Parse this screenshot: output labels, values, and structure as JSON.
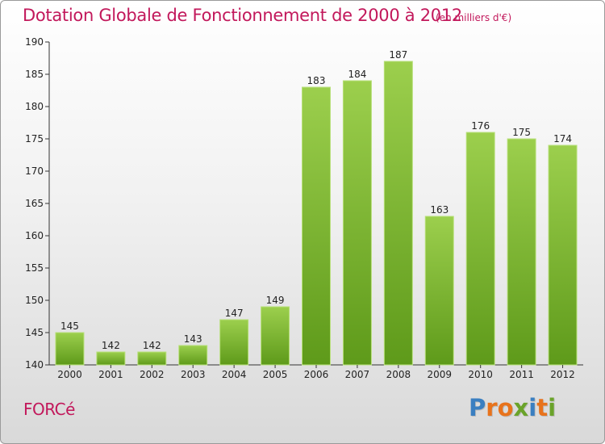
{
  "title": "Dotation Globale de Fonctionnement de 2000 à 2012",
  "subtitle": "(en milliers d'€)",
  "commune": "FORCé",
  "logo": {
    "text": "Proxiti",
    "letter_colors": [
      "#3a7fc1",
      "#e8731c",
      "#e8731c",
      "#6aa32a",
      "#3a7fc1",
      "#e8731c",
      "#6aa32a"
    ]
  },
  "colors": {
    "title": "#c2185b",
    "bar_top": "#9ccf4d",
    "bar_bottom": "#5e9a1a"
  },
  "chart_data": {
    "type": "bar",
    "title": "Dotation Globale de Fonctionnement de 2000 à 2012",
    "subtitle": "(en milliers d'€)",
    "categories": [
      "2000",
      "2001",
      "2002",
      "2003",
      "2004",
      "2005",
      "2006",
      "2007",
      "2008",
      "2009",
      "2010",
      "2011",
      "2012"
    ],
    "values": [
      145,
      142,
      142,
      143,
      147,
      149,
      183,
      184,
      187,
      163,
      176,
      175,
      174
    ],
    "ylim": [
      140,
      190
    ],
    "yticks": [
      140,
      145,
      150,
      155,
      160,
      165,
      170,
      175,
      180,
      185,
      190
    ],
    "grid": false,
    "legend": "none"
  }
}
